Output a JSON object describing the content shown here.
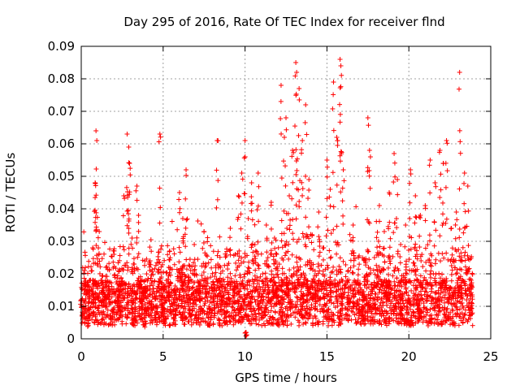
{
  "chart_data": {
    "type": "scatter",
    "title": "Day 295 of 2016, Rate Of TEC Index for receiver flnd",
    "xlabel": "GPS time / hours",
    "ylabel": "ROTI / TECUs",
    "xlim": [
      0,
      25
    ],
    "ylim": [
      0,
      0.09
    ],
    "xticks": [
      0,
      5,
      10,
      15,
      20,
      25
    ],
    "xtick_labels": [
      "0",
      "5",
      "10",
      "15",
      "20",
      "25"
    ],
    "yticks": [
      0,
      0.01,
      0.02,
      0.03,
      0.04,
      0.05,
      0.06,
      0.07,
      0.08,
      0.09
    ],
    "ytick_labels": [
      "0",
      "0.01",
      "0.02",
      "0.03",
      "0.04",
      "0.05",
      "0.06",
      "0.07",
      "0.08",
      "0.09"
    ],
    "grid": true,
    "marker": "plus",
    "color": "#ff0000",
    "series": [
      {
        "name": "ROTI",
        "x": [
          0.0,
          0.2,
          0.4,
          0.5,
          0.7,
          0.85,
          0.9,
          0.95,
          1.1,
          1.3,
          1.5,
          1.8,
          2.0,
          2.3,
          2.6,
          2.8,
          2.9,
          2.95,
          3.1,
          3.3,
          3.4,
          3.5,
          3.7,
          3.9,
          4.2,
          4.5,
          4.8,
          4.9,
          5.1,
          5.4,
          5.7,
          6.0,
          6.2,
          6.4,
          6.6,
          6.9,
          7.2,
          7.5,
          7.8,
          8.1,
          8.3,
          8.5,
          8.8,
          9.1,
          9.4,
          9.6,
          9.8,
          10.0,
          10.05,
          10.2,
          10.4,
          10.6,
          10.8,
          11.0,
          11.3,
          11.6,
          11.8,
          12.0,
          12.2,
          12.4,
          12.5,
          12.7,
          12.9,
          13.1,
          13.15,
          13.3,
          13.5,
          13.7,
          13.9,
          14.1,
          14.3,
          14.5,
          14.8,
          15.0,
          15.2,
          15.4,
          15.6,
          15.8,
          15.85,
          16.0,
          16.3,
          16.6,
          16.9,
          17.2,
          17.5,
          17.6,
          17.9,
          18.2,
          18.5,
          18.8,
          19.1,
          19.3,
          19.5,
          19.8,
          20.1,
          20.4,
          20.7,
          21.0,
          21.3,
          21.6,
          21.9,
          22.1,
          22.3,
          22.6,
          22.9,
          23.1,
          23.2,
          23.4,
          23.6,
          23.8
        ],
        "y": [
          0.012,
          0.021,
          0.009,
          0.018,
          0.028,
          0.048,
          0.064,
          0.061,
          0.033,
          0.014,
          0.022,
          0.011,
          0.026,
          0.017,
          0.044,
          0.063,
          0.059,
          0.054,
          0.031,
          0.012,
          0.047,
          0.038,
          0.016,
          0.009,
          0.024,
          0.013,
          0.063,
          0.019,
          0.011,
          0.027,
          0.014,
          0.045,
          0.037,
          0.052,
          0.018,
          0.029,
          0.012,
          0.033,
          0.01,
          0.015,
          0.061,
          0.022,
          0.011,
          0.034,
          0.026,
          0.044,
          0.051,
          0.061,
          0.002,
          0.037,
          0.048,
          0.029,
          0.051,
          0.013,
          0.035,
          0.042,
          0.031,
          0.021,
          0.078,
          0.062,
          0.068,
          0.044,
          0.058,
          0.085,
          0.082,
          0.077,
          0.061,
          0.072,
          0.049,
          0.032,
          0.015,
          0.039,
          0.028,
          0.055,
          0.046,
          0.079,
          0.062,
          0.086,
          0.084,
          0.052,
          0.021,
          0.035,
          0.018,
          0.012,
          0.068,
          0.058,
          0.025,
          0.041,
          0.033,
          0.045,
          0.057,
          0.049,
          0.029,
          0.035,
          0.052,
          0.044,
          0.038,
          0.041,
          0.055,
          0.048,
          0.058,
          0.054,
          0.061,
          0.034,
          0.039,
          0.082,
          0.025,
          0.051,
          0.047,
          0.018
        ]
      }
    ]
  }
}
